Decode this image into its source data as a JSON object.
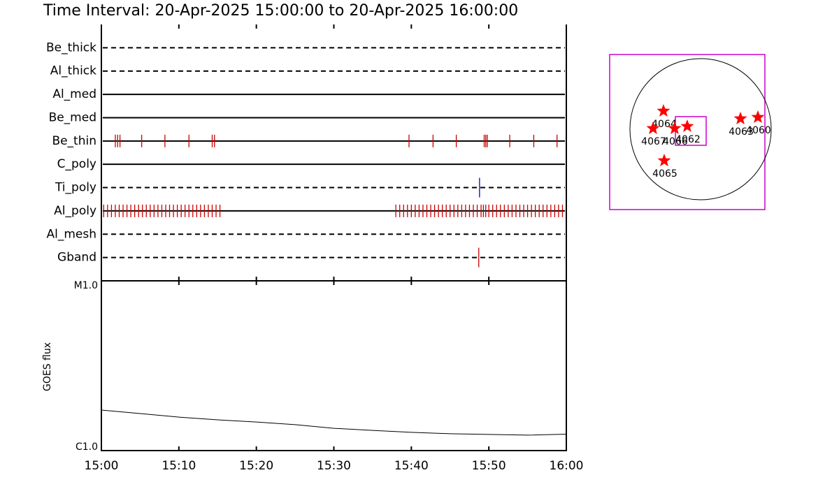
{
  "chart_data": [
    {
      "type": "timeline",
      "title": "Time Interval: 20-Apr-2025 15:00:00 to 20-Apr-2025 16:00:00",
      "xlim": [
        0,
        60
      ],
      "rows": [
        {
          "name": "Be_thick",
          "style": "dashed",
          "events": []
        },
        {
          "name": "Al_thick",
          "style": "dashed",
          "events": []
        },
        {
          "name": "Al_med",
          "style": "solid",
          "events": []
        },
        {
          "name": "Be_med",
          "style": "solid",
          "events": []
        },
        {
          "name": "Be_thin",
          "style": "solid",
          "color": "#cc0000",
          "events": [
            1.8,
            2.1,
            2.4,
            5.2,
            8.2,
            11.3,
            14.3,
            14.6,
            39.7,
            42.8,
            45.8,
            49.4,
            49.6,
            49.8,
            52.7,
            55.8,
            58.8
          ]
        },
        {
          "name": "C_poly",
          "style": "solid",
          "events": []
        },
        {
          "name": "Ti_poly",
          "style": "dashed",
          "color": "#0000cc",
          "events": [
            48.8
          ]
        },
        {
          "name": "Al_poly",
          "style": "solid",
          "color": "#cc0000",
          "events": [
            0.3,
            0.8,
            1.3,
            1.8,
            2.3,
            2.8,
            3.3,
            3.8,
            4.3,
            4.8,
            5.3,
            5.8,
            6.3,
            6.8,
            7.3,
            7.8,
            8.3,
            8.8,
            9.3,
            9.8,
            10.3,
            10.8,
            11.3,
            11.8,
            12.3,
            12.8,
            13.3,
            13.8,
            14.3,
            14.8,
            15.3,
            38.0,
            38.5,
            39.0,
            39.5,
            40.0,
            40.5,
            41.0,
            41.5,
            42.0,
            42.5,
            43.0,
            43.5,
            44.0,
            44.5,
            45.0,
            45.5,
            46.0,
            46.5,
            47.0,
            47.5,
            48.0,
            48.5,
            49.0,
            49.3,
            49.6,
            50.0,
            50.5,
            51.0,
            51.5,
            52.0,
            52.5,
            53.0,
            53.5,
            54.0,
            54.5,
            55.0,
            55.5,
            56.0,
            56.5,
            57.0,
            57.5,
            58.0,
            58.5,
            59.0,
            59.5
          ]
        },
        {
          "name": "Al_mesh",
          "style": "dashed",
          "events": []
        },
        {
          "name": "Gband",
          "style": "dashed",
          "color": "#cc0000",
          "events": [
            48.7
          ]
        }
      ]
    },
    {
      "type": "line",
      "y_label": "GOES flux",
      "x": [
        0,
        5,
        10,
        15,
        20,
        25,
        30,
        35,
        40,
        45,
        50,
        55,
        60
      ],
      "values": [
        3e-06,
        2.73e-06,
        2.48e-06,
        2.3e-06,
        2.17e-06,
        2.02e-06,
        1.83e-06,
        1.73e-06,
        1.64e-06,
        1.58e-06,
        1.55e-06,
        1.52e-06,
        1.56e-06
      ],
      "color": "#000000",
      "log_y": true,
      "xlim": [
        0,
        60
      ],
      "xticks": [
        {
          "value": 0,
          "label": "15:00"
        },
        {
          "value": 10,
          "label": "15:10"
        },
        {
          "value": 20,
          "label": "15:20"
        },
        {
          "value": 30,
          "label": "15:30"
        },
        {
          "value": 40,
          "label": "15:40"
        },
        {
          "value": 50,
          "label": "15:50"
        },
        {
          "value": 60,
          "label": "16:00"
        }
      ],
      "ylim": [
        1e-06,
        0.0001
      ],
      "yticks": [
        {
          "value": 1e-06,
          "label": "C1.0"
        },
        {
          "value": 0.0001,
          "label": "M1.0"
        }
      ]
    },
    {
      "type": "map",
      "xlim": [
        -1235,
        874
      ],
      "ylim": [
        -1093,
        1016
      ],
      "disk_radius": 960,
      "fov": {
        "x": [
          -342,
          76
        ],
        "y": [
          -219,
          171
        ]
      },
      "regions": [
        {
          "name": "4064",
          "x": -504,
          "y": 247
        },
        {
          "name": "4067",
          "x": -646,
          "y": 10
        },
        {
          "name": "4066",
          "x": -352,
          "y": 10
        },
        {
          "name": "4062",
          "x": -181,
          "y": 38
        },
        {
          "name": "4065",
          "x": -494,
          "y": -428
        },
        {
          "name": "4063",
          "x": 542,
          "y": 143
        },
        {
          "name": "4060",
          "x": 779,
          "y": 162
        }
      ]
    }
  ]
}
